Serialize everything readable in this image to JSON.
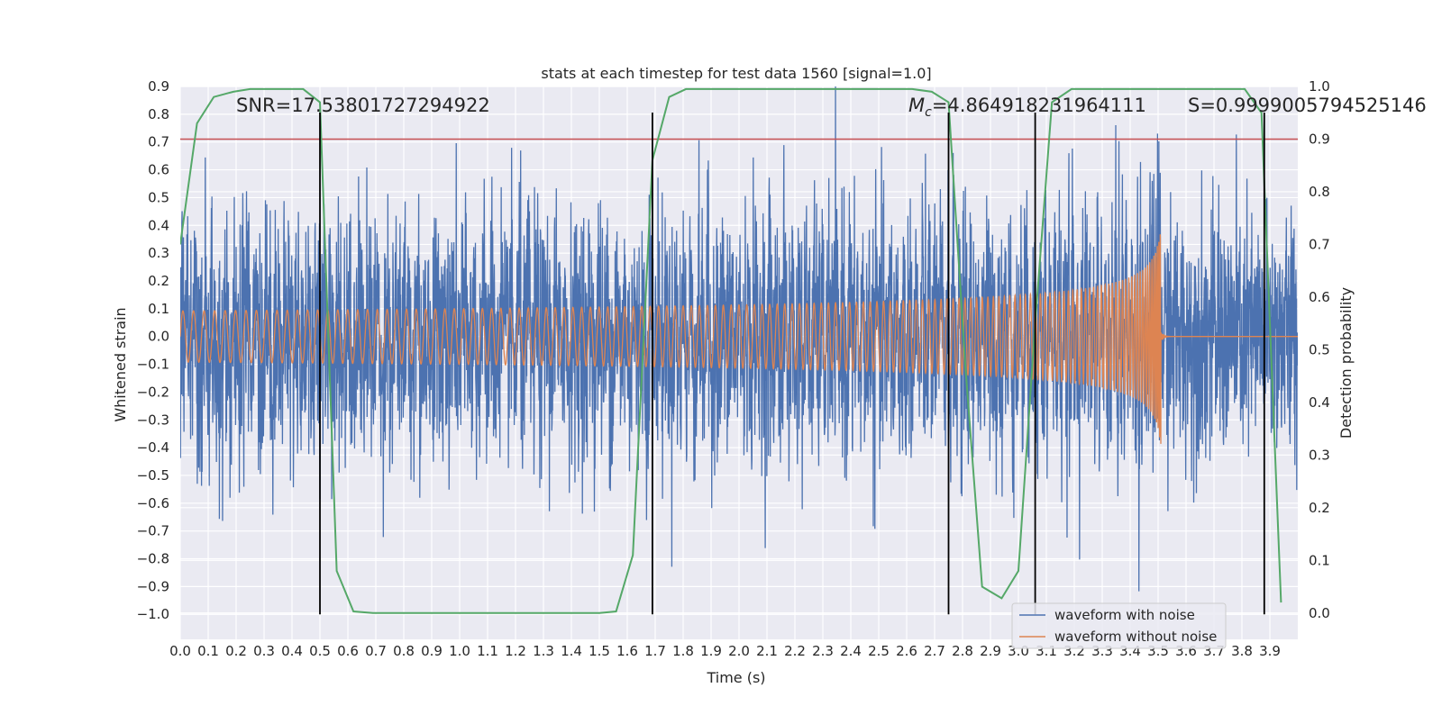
{
  "chart_data": {
    "type": "line",
    "title": "stats at each timestep for test data 1560 [signal=1.0]",
    "xlabel": "Time (s)",
    "ylabel": "Whitened strain",
    "y2label": "Detection probability",
    "xlim": [
      0.0,
      4.0
    ],
    "ylim": [
      -1.09,
      0.9
    ],
    "y2lim": [
      -0.05,
      1.0
    ],
    "xticks": [
      "0.0",
      "0.1",
      "0.2",
      "0.3",
      "0.4",
      "0.5",
      "0.6",
      "0.7",
      "0.8",
      "0.9",
      "1.0",
      "1.1",
      "1.2",
      "1.3",
      "1.4",
      "1.5",
      "1.6",
      "1.7",
      "1.8",
      "1.9",
      "2.0",
      "2.1",
      "2.2",
      "2.3",
      "2.4",
      "2.5",
      "2.6",
      "2.7",
      "2.8",
      "2.9",
      "3.0",
      "3.1",
      "3.2",
      "3.3",
      "3.4",
      "3.5",
      "3.6",
      "3.7",
      "3.8",
      "3.9"
    ],
    "yticks": [
      "0.9",
      "0.8",
      "0.7",
      "0.6",
      "0.5",
      "0.4",
      "0.3",
      "0.2",
      "0.1",
      "0.0",
      "-0.1",
      "-0.2",
      "-0.3",
      "-0.4",
      "-0.5",
      "-0.6",
      "-0.7",
      "-0.8",
      "-0.9",
      "-1.0"
    ],
    "y2ticks": [
      "1.0",
      "0.9",
      "0.8",
      "0.7",
      "0.6",
      "0.5",
      "0.4",
      "0.3",
      "0.2",
      "0.1",
      "0.0"
    ],
    "annotations": {
      "snr": "SNR=17.53801727294922",
      "mc_symbol": "M",
      "mc_sub": "c",
      "mc_value": "=4.864918231964111",
      "s": "S=0.9999005794525146"
    },
    "threshold": {
      "value": 0.9,
      "axis": "y2",
      "color": "#c44e52"
    },
    "vlines": [
      0.5,
      1.69,
      2.75,
      3.06,
      3.88
    ],
    "series": [
      {
        "name": "waveform with noise",
        "color": "#4c72b0",
        "model": "gaussian-noise",
        "sigma": 0.22,
        "t_range": [
          0.0,
          4.0
        ]
      },
      {
        "name": "waveform without noise",
        "color": "#dd8452",
        "model": "chirp",
        "merger_time": 3.51,
        "peak_amplitude": 0.4,
        "t_range": [
          0.0,
          4.0
        ]
      },
      {
        "name": "detection probability",
        "color": "#55a868",
        "axis": "y2",
        "x": [
          0.0,
          0.06,
          0.12,
          0.19,
          0.25,
          0.31,
          0.37,
          0.44,
          0.5,
          0.56,
          0.62,
          0.69,
          0.75,
          0.81,
          0.87,
          0.94,
          1.0,
          1.06,
          1.12,
          1.19,
          1.25,
          1.31,
          1.37,
          1.44,
          1.5,
          1.56,
          1.62,
          1.69,
          1.75,
          1.81,
          1.87,
          1.94,
          2.0,
          2.06,
          2.12,
          2.19,
          2.25,
          2.31,
          2.37,
          2.44,
          2.5,
          2.56,
          2.62,
          2.69,
          2.75,
          2.81,
          2.87,
          2.94,
          3.0,
          3.06,
          3.12,
          3.19,
          3.25,
          3.31,
          3.37,
          3.44,
          3.5,
          3.56,
          3.62,
          3.69,
          3.75,
          3.81,
          3.87,
          3.94
        ],
        "values": [
          0.7,
          0.93,
          0.98,
          0.99,
          0.995,
          0.995,
          0.995,
          0.995,
          0.97,
          0.08,
          0.003,
          0.0,
          0.0,
          0.0,
          0.0,
          0.0,
          0.0,
          0.0,
          0.0,
          0.0,
          0.0,
          0.0,
          0.0,
          0.0,
          0.0,
          0.003,
          0.11,
          0.86,
          0.98,
          0.995,
          0.995,
          0.995,
          0.995,
          0.995,
          0.995,
          0.995,
          0.995,
          0.995,
          0.995,
          0.995,
          0.995,
          0.995,
          0.995,
          0.99,
          0.97,
          0.47,
          0.05,
          0.028,
          0.08,
          0.55,
          0.97,
          0.995,
          0.995,
          0.995,
          0.995,
          0.995,
          0.995,
          0.995,
          0.995,
          0.995,
          0.995,
          0.995,
          0.95,
          0.02
        ]
      }
    ],
    "legend": {
      "placement": "lower-right",
      "entries": [
        "waveform with noise",
        "waveform without noise"
      ]
    }
  },
  "colors": {
    "plot_background": "#eaeaf2",
    "grid": "#ffffff",
    "vline": "#000000"
  }
}
